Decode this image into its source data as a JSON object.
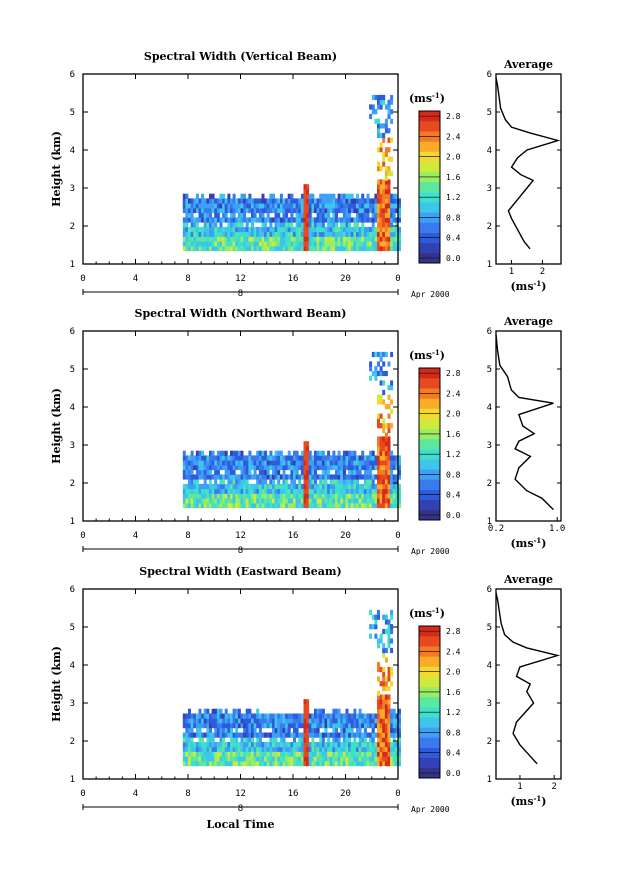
{
  "chart_data": [
    {
      "type": "heatmap",
      "title": "Spectral Width (Vertical Beam)",
      "ylabel": "Height (km)",
      "xlabel": "",
      "x_ticks": [
        "0",
        "4",
        "8",
        "12",
        "16",
        "20",
        "0"
      ],
      "y_ticks": [
        "1",
        "2",
        "3",
        "4",
        "5",
        "6"
      ],
      "xlim": [
        0,
        24
      ],
      "ylim": [
        1,
        6
      ],
      "date_axis_label": "8",
      "date_label": "Apr 2000",
      "colorbar": {
        "unit": "(ms-1)",
        "ticks": [
          "0.0",
          "0.4",
          "0.8",
          "1.2",
          "1.6",
          "2.0",
          "2.4",
          "2.8"
        ],
        "range": [
          0,
          3.0
        ]
      },
      "profile": {
        "title": "Average",
        "xlabel": "(ms-1)",
        "x_ticks": [
          "1",
          "2"
        ],
        "xlim": [
          0.5,
          2.6
        ],
        "y_ticks": [
          "1",
          "2",
          "3",
          "4",
          "5",
          "6"
        ],
        "points": [
          [
            1.6,
            1.4
          ],
          [
            1.4,
            1.6
          ],
          [
            1.2,
            1.9
          ],
          [
            1.0,
            2.2
          ],
          [
            0.9,
            2.4
          ],
          [
            1.1,
            2.6
          ],
          [
            1.3,
            2.8
          ],
          [
            1.5,
            3.0
          ],
          [
            1.7,
            3.2
          ],
          [
            1.3,
            3.35
          ],
          [
            1.0,
            3.55
          ],
          [
            1.2,
            3.8
          ],
          [
            1.5,
            4.0
          ],
          [
            2.5,
            4.25
          ],
          [
            1.6,
            4.45
          ],
          [
            1.0,
            4.6
          ],
          [
            0.8,
            4.8
          ],
          [
            0.65,
            5.1
          ],
          [
            0.6,
            5.4
          ],
          [
            0.55,
            5.7
          ],
          [
            0.5,
            5.9
          ]
        ]
      }
    },
    {
      "type": "heatmap",
      "title": "Spectral Width (Northward Beam)",
      "ylabel": "Height (km)",
      "xlabel": "",
      "x_ticks": [
        "0",
        "4",
        "8",
        "12",
        "16",
        "20",
        "0"
      ],
      "y_ticks": [
        "1",
        "2",
        "3",
        "4",
        "5",
        "6"
      ],
      "xlim": [
        0,
        24
      ],
      "ylim": [
        1,
        6
      ],
      "date_axis_label": "8",
      "date_label": "Apr 2000",
      "colorbar": {
        "unit": "(ms-1)",
        "ticks": [
          "0.0",
          "0.4",
          "0.8",
          "1.2",
          "1.6",
          "2.0",
          "2.4",
          "2.8"
        ],
        "range": [
          0,
          3.0
        ]
      },
      "profile": {
        "title": "Average",
        "xlabel": "(ms-1)",
        "x_ticks": [
          "0.2",
          "1.0"
        ],
        "xlim": [
          0.2,
          1.05
        ],
        "y_ticks": [
          "1",
          "2",
          "3",
          "4",
          "5",
          "6"
        ],
        "points": [
          [
            0.95,
            1.3
          ],
          [
            0.8,
            1.6
          ],
          [
            0.6,
            1.8
          ],
          [
            0.45,
            2.1
          ],
          [
            0.5,
            2.4
          ],
          [
            0.65,
            2.7
          ],
          [
            0.45,
            2.9
          ],
          [
            0.5,
            3.1
          ],
          [
            0.7,
            3.3
          ],
          [
            0.55,
            3.5
          ],
          [
            0.5,
            3.8
          ],
          [
            0.95,
            4.1
          ],
          [
            0.5,
            4.25
          ],
          [
            0.4,
            4.45
          ],
          [
            0.35,
            4.8
          ],
          [
            0.25,
            5.1
          ],
          [
            0.22,
            5.5
          ],
          [
            0.2,
            5.9
          ]
        ]
      }
    },
    {
      "type": "heatmap",
      "title": "Spectral Width (Eastward Beam)",
      "ylabel": "Height (km)",
      "xlabel": "Local Time",
      "x_ticks": [
        "0",
        "4",
        "8",
        "12",
        "16",
        "20",
        "0"
      ],
      "y_ticks": [
        "1",
        "2",
        "3",
        "4",
        "5",
        "6"
      ],
      "xlim": [
        0,
        24
      ],
      "ylim": [
        1,
        6
      ],
      "date_axis_label": "8",
      "date_label": "Apr 2000",
      "colorbar": {
        "unit": "(ms-1)",
        "ticks": [
          "0.0",
          "0.4",
          "0.8",
          "1.2",
          "1.6",
          "2.0",
          "2.4",
          "2.8"
        ],
        "range": [
          0,
          3.0
        ]
      },
      "profile": {
        "title": "Average",
        "xlabel": "(ms-1)",
        "x_ticks": [
          "1",
          "2"
        ],
        "xlim": [
          0.3,
          2.2
        ],
        "y_ticks": [
          "1",
          "2",
          "3",
          "4",
          "5",
          "6"
        ],
        "points": [
          [
            1.5,
            1.4
          ],
          [
            1.3,
            1.6
          ],
          [
            1.0,
            1.9
          ],
          [
            0.8,
            2.2
          ],
          [
            0.9,
            2.5
          ],
          [
            1.2,
            2.8
          ],
          [
            1.4,
            3.0
          ],
          [
            1.2,
            3.3
          ],
          [
            1.3,
            3.5
          ],
          [
            0.9,
            3.7
          ],
          [
            1.0,
            3.95
          ],
          [
            2.1,
            4.25
          ],
          [
            1.2,
            4.45
          ],
          [
            0.8,
            4.6
          ],
          [
            0.55,
            4.8
          ],
          [
            0.45,
            5.1
          ],
          [
            0.4,
            5.4
          ],
          [
            0.35,
            5.7
          ],
          [
            0.3,
            5.9
          ]
        ]
      }
    }
  ]
}
